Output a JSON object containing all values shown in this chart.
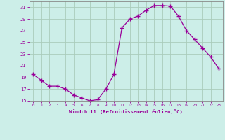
{
  "x": [
    0,
    1,
    2,
    3,
    4,
    5,
    6,
    7,
    8,
    9,
    10,
    11,
    12,
    13,
    14,
    15,
    16,
    17,
    18,
    19,
    20,
    21,
    22,
    23
  ],
  "y": [
    19.5,
    18.5,
    17.5,
    17.5,
    17.0,
    16.0,
    15.5,
    15.0,
    15.2,
    17.0,
    19.5,
    27.5,
    29.0,
    29.5,
    30.5,
    31.3,
    31.3,
    31.2,
    29.5,
    27.0,
    25.5,
    24.0,
    22.5,
    20.5
  ],
  "line_color": "#990099",
  "marker": "+",
  "marker_size": 4,
  "bg_color": "#cceee8",
  "grid_color": "#aaccbb",
  "xlabel": "Windchill (Refroidissement éolien,°C)",
  "xlabel_color": "#990099",
  "tick_color": "#990099",
  "spine_color": "#888888",
  "ylim": [
    15,
    32
  ],
  "yticks": [
    15,
    17,
    19,
    21,
    23,
    25,
    27,
    29,
    31
  ],
  "xlim": [
    -0.5,
    23.5
  ],
  "xticks": [
    0,
    1,
    2,
    3,
    4,
    5,
    6,
    7,
    8,
    9,
    10,
    11,
    12,
    13,
    14,
    15,
    16,
    17,
    18,
    19,
    20,
    21,
    22,
    23
  ]
}
